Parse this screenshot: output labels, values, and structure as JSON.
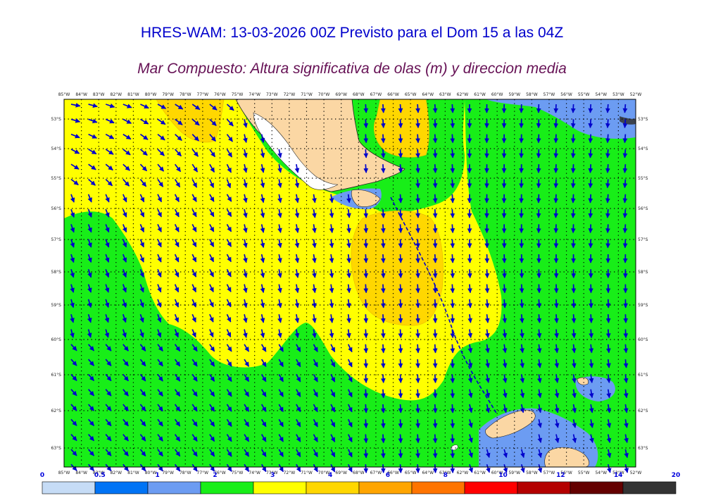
{
  "header": {
    "title": "HRES-WAM: 13-03-2026 00Z Previsto para el Dom 15 a las 04Z",
    "subtitle": "Mar Compuesto: Altura significativa de olas (m) y direccion media"
  },
  "map": {
    "lon_labels": [
      "85°W",
      "84°W",
      "83°W",
      "82°W",
      "81°W",
      "80°W",
      "79°W",
      "78°W",
      "77°W",
      "76°W",
      "75°W",
      "74°W",
      "73°W",
      "72°W",
      "71°W",
      "70°W",
      "69°W",
      "68°W",
      "67°W",
      "66°W",
      "65°W",
      "64°W",
      "63°W",
      "62°W",
      "61°W",
      "60°W",
      "59°W",
      "58°W",
      "57°W",
      "56°W",
      "55°W",
      "54°W",
      "53°W",
      "52°W"
    ],
    "lat_labels": [
      "53°S",
      "54°S",
      "55°S",
      "56°S",
      "57°S",
      "58°S",
      "59°S",
      "60°S",
      "61°S",
      "62°S",
      "63°S"
    ],
    "colors": {
      "land": "#fbd7a4",
      "arrow": "#0000cc",
      "grid": "#000000"
    }
  },
  "colorbar": {
    "ticks": [
      "0",
      "0.5",
      "1",
      "2",
      "3",
      "4",
      "6",
      "8",
      "10",
      "12",
      "14",
      "20"
    ],
    "colors": [
      "#c6dcf6",
      "#0073f5",
      "#6c9cf2",
      "#18ee18",
      "#ffff00",
      "#ffd700",
      "#ffa500",
      "#ff7400",
      "#ff0000",
      "#b40000",
      "#640000",
      "#333333"
    ]
  }
}
